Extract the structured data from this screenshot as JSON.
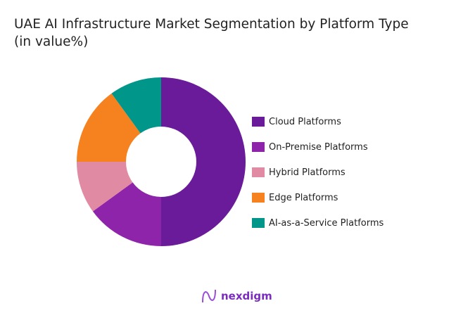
{
  "chart_data": {
    "type": "pie",
    "donut": true,
    "title": "UAE AI Infrastructure Market Segmentation by Platform Type",
    "subtitle": "(in value%)",
    "categories": [
      "Cloud Platforms",
      "On-Premise Platforms",
      "Hybrid Platforms",
      "Edge Platforms",
      "AI-as-a-Service Platforms"
    ],
    "values": [
      50,
      15,
      10,
      15,
      10
    ],
    "colors": [
      "#6a1b9a",
      "#8e24aa",
      "#e08aa3",
      "#f5821f",
      "#00968a"
    ],
    "legend_position": "right"
  },
  "brand": {
    "name": "nexdigm",
    "color": "#7b2cbf"
  }
}
